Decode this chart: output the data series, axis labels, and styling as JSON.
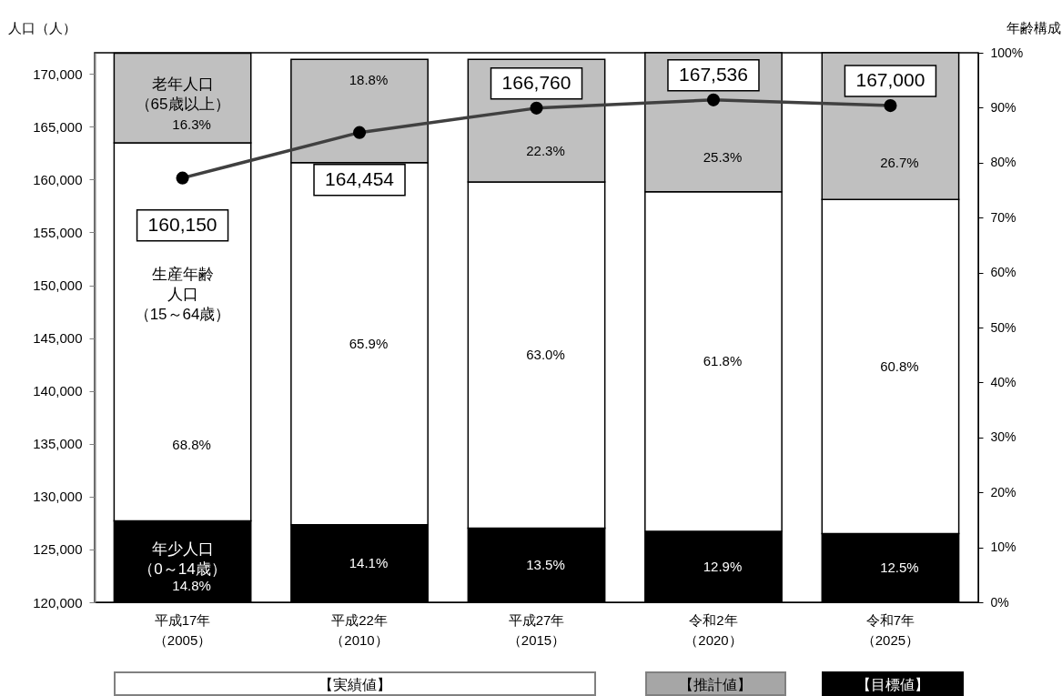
{
  "chart_data": {
    "type": "bar",
    "stacked": true,
    "ylabel": "人口（人）",
    "y2label": "年齢構成",
    "categories": [
      "平成17年（2005）",
      "平成22年（2010）",
      "平成27年（2015）",
      "令和2年（2020）",
      "令和7年（2025）"
    ],
    "ylim": [
      120000,
      172000
    ],
    "yticks": [
      {
        "value": 120000,
        "label": "120,000"
      },
      {
        "value": 125000,
        "label": "125,000"
      },
      {
        "value": 130000,
        "label": "130,000"
      },
      {
        "value": 135000,
        "label": "135,000"
      },
      {
        "value": 140000,
        "label": "140,000"
      },
      {
        "value": 145000,
        "label": "145,000"
      },
      {
        "value": 150000,
        "label": "150,000"
      },
      {
        "value": 155000,
        "label": "155,000"
      },
      {
        "value": 160000,
        "label": "160,000"
      },
      {
        "value": 165000,
        "label": "165,000"
      },
      {
        "value": 170000,
        "label": "170,000"
      }
    ],
    "y2lim": [
      0,
      100
    ],
    "y2ticks": [
      {
        "value": 0,
        "label": "0%"
      },
      {
        "value": 10,
        "label": "10%"
      },
      {
        "value": 20,
        "label": "20%"
      },
      {
        "value": 30,
        "label": "30%"
      },
      {
        "value": 40,
        "label": "40%"
      },
      {
        "value": 50,
        "label": "50%"
      },
      {
        "value": 60,
        "label": "60%"
      },
      {
        "value": 70,
        "label": "70%"
      },
      {
        "value": 80,
        "label": "80%"
      },
      {
        "value": 90,
        "label": "90%"
      },
      {
        "value": 100,
        "label": "100%"
      }
    ],
    "marker": "circle",
    "series": [
      {
        "name": "年少人口（0～14歳）",
        "color": "#000000",
        "axis": "y2",
        "values": [
          14.8,
          14.1,
          13.5,
          12.9,
          12.5
        ],
        "value_labels": [
          "14.8%",
          "14.1%",
          "13.5%",
          "12.9%",
          "12.5%"
        ]
      },
      {
        "name": "生産年齢人口（15～64歳）",
        "color": "#ffffff",
        "axis": "y2",
        "values": [
          68.8,
          65.9,
          63.0,
          61.8,
          60.8
        ],
        "value_labels": [
          "68.8%",
          "65.9%",
          "63.0%",
          "61.8%",
          "60.8%"
        ]
      },
      {
        "name": "老年人口（65歳以上）",
        "color": "#c0c0c0",
        "axis": "y2",
        "values": [
          16.3,
          18.8,
          22.3,
          25.3,
          26.7
        ],
        "value_labels": [
          "16.3%",
          "18.8%",
          "22.3%",
          "25.3%",
          "26.7%"
        ]
      },
      {
        "type": "line",
        "color": "#404040",
        "values": [
          160150,
          164454,
          166760,
          167536,
          167000
        ],
        "value_labels": [
          "160,150",
          "164,454",
          "166,760",
          "167,536",
          "167,000"
        ]
      }
    ],
    "annotations": [
      "【実績値】",
      "【推計値】",
      "【目標値】"
    ]
  }
}
